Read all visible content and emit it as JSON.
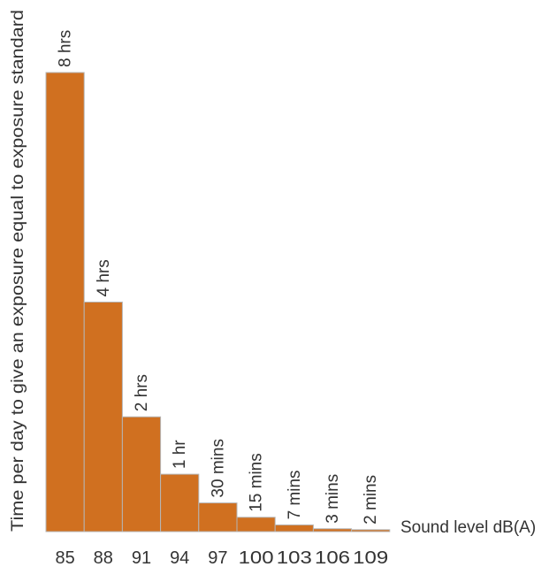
{
  "chart_data": {
    "type": "bar",
    "title": "",
    "ylabel": "Time per day to give an exposure equal to exposure standard",
    "xlabel": "Sound level dB(A)",
    "categories": [
      "85",
      "88",
      "91",
      "94",
      "97",
      "100",
      "103",
      "106",
      "109"
    ],
    "values_minutes": [
      480,
      240,
      120,
      60,
      30,
      15,
      7,
      3,
      2
    ],
    "data_labels": [
      "8 hrs",
      "4 hrs",
      "2 hrs",
      "1 hr",
      "30 mins",
      "15 mins",
      "7 mins",
      "3 mins",
      "2 mins"
    ],
    "ylim": [
      0,
      480
    ],
    "grid": false,
    "legend": "none",
    "bar_color": "#d07020",
    "bar_edge_color": "#b5b5b5"
  }
}
